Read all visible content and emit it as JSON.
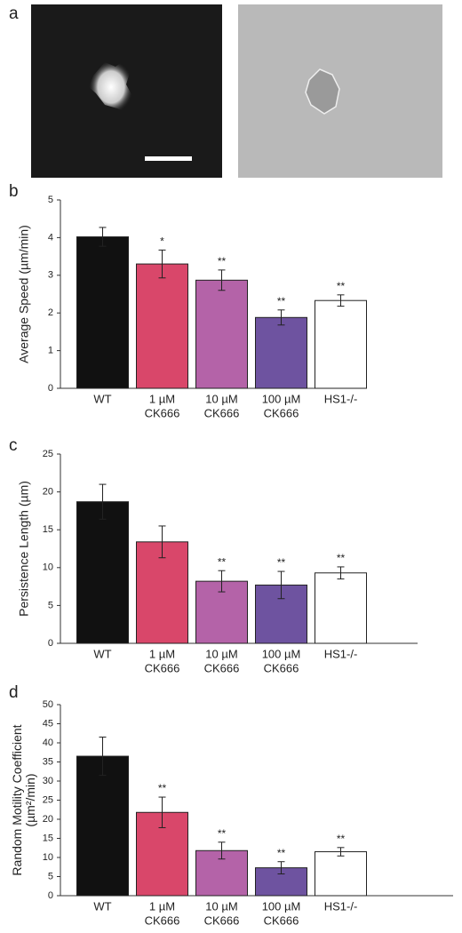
{
  "panel_labels": [
    "a",
    "b",
    "c",
    "d"
  ],
  "chart_data": [
    {
      "type": "bar",
      "ylabel": [
        "Average Speed (µm/min)"
      ],
      "categories": [
        [
          "WT"
        ],
        [
          "1 µM",
          "CK666"
        ],
        [
          "10 µM",
          "CK666"
        ],
        [
          "100 µM",
          "CK666"
        ],
        [
          "HS1-/-"
        ]
      ],
      "values": [
        4.02,
        3.3,
        2.87,
        1.88,
        2.33
      ],
      "errors": [
        0.25,
        0.37,
        0.27,
        0.2,
        0.15
      ],
      "annotations": [
        null,
        "*",
        "**",
        "**",
        "**"
      ],
      "colors": [
        "#111111",
        "#d9476a",
        "#b463a8",
        "#6e53a0",
        "#ffffff"
      ],
      "ylim": [
        0,
        5
      ],
      "yticks": [
        0,
        1,
        2,
        3,
        4,
        5
      ]
    },
    {
      "type": "bar",
      "ylabel": [
        "Persistence Length (µm)"
      ],
      "categories": [
        [
          "WT"
        ],
        [
          "1 µM",
          "CK666"
        ],
        [
          "10 µM",
          "CK666"
        ],
        [
          "100 µM",
          "CK666"
        ],
        [
          "HS1-/-"
        ]
      ],
      "values": [
        18.7,
        13.4,
        8.2,
        7.7,
        9.3
      ],
      "errors": [
        2.3,
        2.1,
        1.4,
        1.8,
        0.8
      ],
      "annotations": [
        null,
        null,
        "**",
        "**",
        "**"
      ],
      "colors": [
        "#111111",
        "#d9476a",
        "#b463a8",
        "#6e53a0",
        "#ffffff"
      ],
      "ylim": [
        0,
        25
      ],
      "yticks": [
        0,
        5,
        10,
        15,
        20,
        25
      ]
    },
    {
      "type": "bar",
      "ylabel": [
        "Random Motility Coefficient",
        "(µm²/min)"
      ],
      "categories": [
        [
          "WT"
        ],
        [
          "1 µM",
          "CK666"
        ],
        [
          "10 µM",
          "CK666"
        ],
        [
          "100 µM",
          "CK666"
        ],
        [
          "HS1-/-"
        ]
      ],
      "values": [
        36.5,
        21.8,
        11.8,
        7.3,
        11.5
      ],
      "errors": [
        5,
        4,
        2.2,
        1.6,
        1.1
      ],
      "annotations": [
        null,
        "**",
        "**",
        "**",
        "**"
      ],
      "colors": [
        "#111111",
        "#d9476a",
        "#b463a8",
        "#6e53a0",
        "#ffffff"
      ],
      "ylim": [
        0,
        50
      ],
      "yticks": [
        0,
        5,
        10,
        15,
        20,
        25,
        30,
        35,
        40,
        45,
        50
      ]
    }
  ]
}
